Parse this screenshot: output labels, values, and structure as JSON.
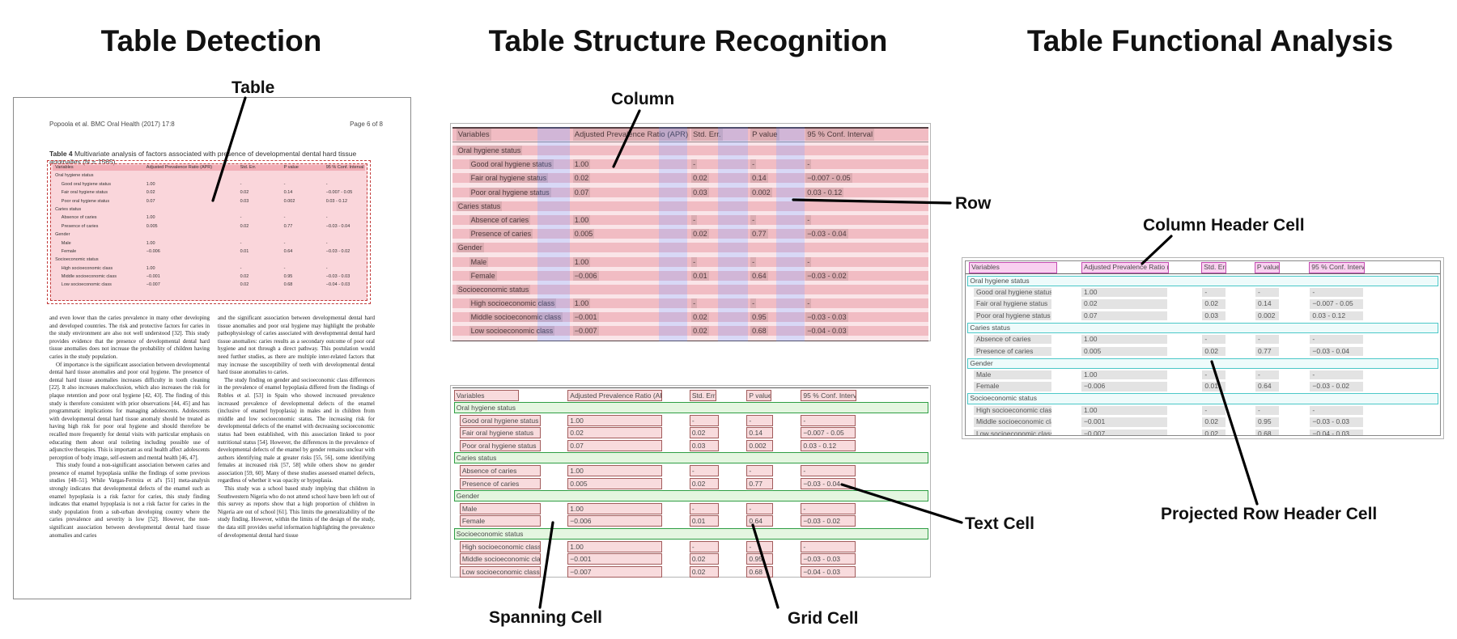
{
  "panels": {
    "detection_title": "Table Detection",
    "structure_title": "Table Structure Recognition",
    "functional_title": "Table Functional Analysis"
  },
  "callouts": {
    "table": "Table",
    "column": "Column",
    "row": "Row",
    "column_header_cell": "Column Header Cell",
    "text_cell": "Text Cell",
    "projected_row_header_cell": "Projected Row Header Cell",
    "spanning_cell": "Spanning Cell",
    "grid_cell": "Grid Cell"
  },
  "document": {
    "header_left": "Popoola et al. BMC Oral Health  (2017) 17:8",
    "header_right": "Page 6 of 8",
    "columns": {
      "left": [
        "and even lower than the caries prevalence in many other developing and developed countries. The risk and protective factors for caries in the study environment are also not well understood [32]. This study provides evidence that the presence of developmental dental hard tissue anomalies does not increase the probability of children having caries in the study population.",
        "Of importance is the significant association between developmental dental hard tissue anomalies and poor oral hygiene. The presence of dental hard tissue anomalies increases difficulty in tooth cleaning [22]. It also increases malocclusion, which also increases the risk for plaque retention and poor oral hygiene [42, 43]. The finding of this study is therefore consistent with prior observations [44, 45] and has programmatic implications for managing adolescents. Adolescents with developmental dental hard tissue anomaly should be treated as having high risk for poor oral hygiene and should therefore be recalled more frequently for dental visits with particular emphasis on educating them about oral toileting including possible use of adjunctive therapies. This is important as oral health affect adolescents perception of body image, self-esteem and mental health [46, 47].",
        "This study found a non-significant association between caries and presence of enamel hypoplasia unlike the findings of some previous studies [48–51]. While Vargas-Ferreira et al's [51] meta-analysis strongly indicates that developmental defects of the enamel such as enamel hypoplasia is a risk factor for caries, this study finding indicates that enamel hypoplasia is not a risk factor for caries in the study population from a sub-urban developing country where the caries prevalence and severity is low [52]. However, the non-significant association between developmental dental hard tissue anomalies and caries"
      ],
      "right": [
        "and the significant association between developmental dental hard tissue anomalies and poor oral hygiene may highlight the probable pathophysiology of caries associated with developmental dental hard tissue anomalies: caries results as a secondary outcome of poor oral hygiene and not through a direct pathway. This postulation would need further studies, as there are multiple inter-related factors that may increase the susceptibility of teeth with developmental dental hard tissue anomalies to caries.",
        "The study finding on gender and socioeconomic class differences in the prevalence of enamel hypoplasia differed from the findings of Robles et al. [53] in Spain who showed increased prevalence increased prevalence of developmental defects of the enamel (inclusive of enamel hypoplasia) in males and in children from middle and low socioeconomic status. The increasing risk for developmental defects of the enamel with decreasing socioeconomic status had been established, with this association linked to poor nutritional status [54]. However, the differences in the prevalence of developmental defects of the enamel by gender remains unclear with authors identifying male at greater risks [55, 56], some identifying females at increased risk [57, 58] while others show no gender association [59, 60]. Many of these studies assessed enamel defects, regardless of whether it was opacity or hypoplasia.",
        "This study was a school based study implying that children in Southwestern Nigeria who do not attend school have been left out of this survey as reports show that a high proportion of children in Nigeria are out of school [61]. This limits the generalizability of the study finding. However, within the limits of the design of the study, the data still provides useful information highlighting the prevalence of developmental dental hard tissue"
      ]
    }
  },
  "table": {
    "caption_label": "Table 4",
    "caption_text": "Multivariate analysis of factors associated with presence of developmental dental hard tissue anomalies (N = 1565)",
    "headers": [
      "Variables",
      "Adjusted Prevalence Ratio (APR)",
      "Std. Err.",
      "P value",
      "95 % Conf. Interval"
    ],
    "rows": [
      {
        "type": "section",
        "label": "Oral hygiene status"
      },
      {
        "type": "data",
        "label": "Good oral hygiene status",
        "values": [
          "1.00",
          "-",
          "-",
          "-"
        ]
      },
      {
        "type": "data",
        "label": "Fair oral hygiene status",
        "values": [
          "0.02",
          "0.02",
          "0.14",
          "−0.007 - 0.05"
        ]
      },
      {
        "type": "data",
        "label": "Poor oral hygiene status",
        "values": [
          "0.07",
          "0.03",
          "0.002",
          "0.03 - 0.12"
        ]
      },
      {
        "type": "section",
        "label": "Caries status"
      },
      {
        "type": "data",
        "label": "Absence of caries",
        "values": [
          "1.00",
          "-",
          "-",
          "-"
        ]
      },
      {
        "type": "data",
        "label": "Presence of caries",
        "values": [
          "0.005",
          "0.02",
          "0.77",
          "−0.03 - 0.04"
        ]
      },
      {
        "type": "section",
        "label": "Gender"
      },
      {
        "type": "data",
        "label": "Male",
        "values": [
          "1.00",
          "-",
          "-",
          "-"
        ]
      },
      {
        "type": "data",
        "label": "Female",
        "values": [
          "−0.006",
          "0.01",
          "0.64",
          "−0.03 - 0.02"
        ]
      },
      {
        "type": "section",
        "label": "Socioeconomic status"
      },
      {
        "type": "data",
        "label": "High socioeconomic class",
        "values": [
          "1.00",
          "-",
          "-",
          "-"
        ]
      },
      {
        "type": "data",
        "label": "Middle socioeconomic class",
        "values": [
          "−0.001",
          "0.02",
          "0.95",
          "−0.03 - 0.03"
        ]
      },
      {
        "type": "data",
        "label": "Low socioeconomic class",
        "values": [
          "−0.007",
          "0.02",
          "0.68",
          "−0.04 - 0.03"
        ]
      }
    ]
  },
  "colors": {
    "detection_fill": "#f294a0",
    "detection_border": "#c23b3b",
    "row_band": "rgba(222,95,110,0.30)",
    "column_band": "rgba(222,95,110,0.16)",
    "column_gap_band": "rgba(125,125,225,0.30)",
    "grid_cell_border": "#a25c5c",
    "grid_cell_fill": "rgba(240,175,180,0.45)",
    "spanning_border": "#2f9e44",
    "spanning_fill": "#e4f6e0",
    "column_header_border": "#c24cb0",
    "column_header_fill": "#f9d0f0",
    "projected_border": "#4cc8c8",
    "projected_fill": "#eefbfb",
    "text_bar": "#e3e3e3",
    "connector_line": "#000000"
  }
}
